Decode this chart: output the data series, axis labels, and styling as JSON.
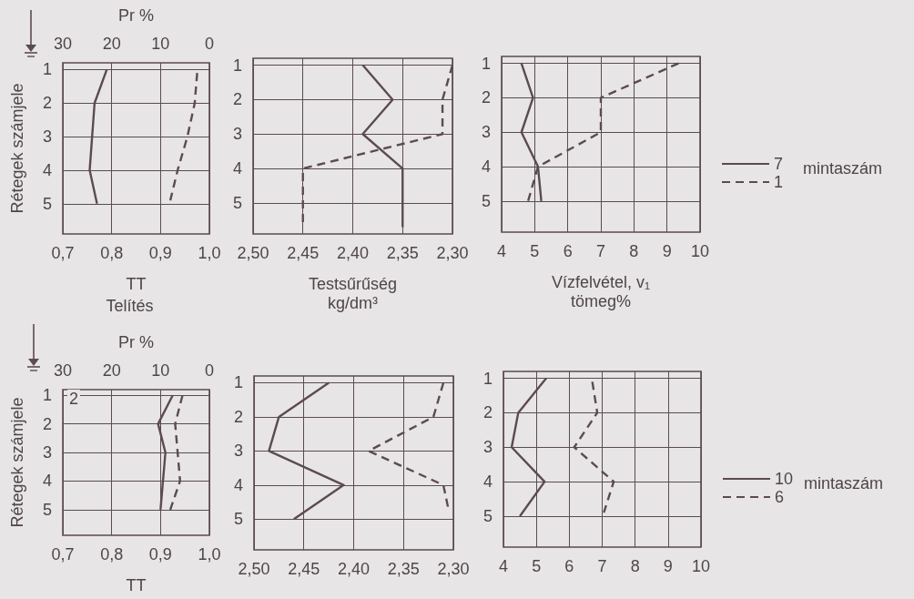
{
  "chart_data": [
    {
      "type": "line",
      "xlabel": "TT",
      "ylabel": "Rétegek számjele",
      "x2label": "Pr %",
      "annotations": [
        "Telítés"
      ],
      "xlim": [
        0.7,
        1.0
      ],
      "xticks": [
        {
          "value": 0.7,
          "label": "0,7"
        },
        {
          "value": 0.8,
          "label": "0,8"
        },
        {
          "value": 0.9,
          "label": "0,9"
        },
        {
          "value": 1.0,
          "label": "1,0"
        }
      ],
      "x2lim": [
        30,
        0
      ],
      "x2ticks": [
        30,
        20,
        10,
        0
      ],
      "ylim": [
        5.9,
        0.8
      ],
      "yticks": [
        1,
        2,
        3,
        4,
        5
      ],
      "grid": true,
      "marker": "none",
      "series": [
        {
          "color": "#5b4b50",
          "line_style": "solid",
          "x": [
            0.79,
            0.765,
            0.76,
            0.755,
            0.77
          ],
          "values": [
            1,
            2,
            3,
            4,
            5
          ]
        },
        {
          "color": "#5b4b50",
          "line_style": "dashed",
          "x": [
            0.975,
            0.97,
            0.955,
            0.935,
            0.92
          ],
          "values": [
            1.1,
            2,
            3,
            4,
            4.9
          ]
        }
      ]
    },
    {
      "type": "line",
      "xlabel": "Testsűrűség\nkg/dm³",
      "xlim": [
        2.5,
        2.3
      ],
      "xticks": [
        {
          "value": 2.5,
          "label": "2,50"
        },
        {
          "value": 2.45,
          "label": "2,45"
        },
        {
          "value": 2.4,
          "label": "2,40"
        },
        {
          "value": 2.35,
          "label": "2,35"
        },
        {
          "value": 2.3,
          "label": "2,30"
        }
      ],
      "ylim": [
        5.9,
        0.8
      ],
      "yticks": [
        1,
        2,
        3,
        4,
        5
      ],
      "grid": true,
      "marker": "none",
      "series": [
        {
          "color": "#5b4b50",
          "line_style": "solid",
          "x": [
            2.39,
            2.36,
            2.39,
            2.35,
            2.35
          ],
          "values": [
            1,
            2,
            3,
            4,
            5.7
          ]
        },
        {
          "color": "#5b4b50",
          "line_style": "dashed",
          "x": [
            2.3,
            2.31,
            2.31,
            2.45,
            2.45
          ],
          "values": [
            1,
            2,
            3,
            4,
            5.7
          ]
        }
      ]
    },
    {
      "type": "line",
      "xlabel": "Vízfelvétel, v₁\ntömeg%",
      "legend_title": "mintaszám",
      "legend": "right",
      "xlim": [
        4,
        10
      ],
      "xticks": [
        4,
        5,
        6,
        7,
        8,
        9,
        10
      ],
      "ylim": [
        5.9,
        0.8
      ],
      "yticks": [
        1,
        2,
        3,
        4,
        5
      ],
      "grid": true,
      "marker": "none",
      "series": [
        {
          "name": "7",
          "color": "#5b4b50",
          "line_style": "solid",
          "x": [
            4.6,
            4.95,
            4.6,
            5.1,
            5.2
          ],
          "values": [
            1,
            2,
            3,
            4,
            5
          ]
        },
        {
          "name": "1",
          "color": "#5b4b50",
          "line_style": "dashed",
          "x": [
            9.35,
            7.0,
            7.0,
            5.1,
            4.8
          ],
          "values": [
            1,
            2,
            3,
            4,
            5
          ]
        }
      ]
    },
    {
      "type": "line",
      "xlabel": "TT",
      "ylabel": "Rétegek számjele",
      "x2label": "Pr %",
      "annotations": [
        "2"
      ],
      "xlim": [
        0.7,
        1.0
      ],
      "xticks": [
        {
          "value": 0.7,
          "label": "0,7"
        },
        {
          "value": 0.8,
          "label": "0,8"
        },
        {
          "value": 0.9,
          "label": "0,9"
        },
        {
          "value": 1.0,
          "label": "1,0"
        }
      ],
      "x2lim": [
        30,
        0
      ],
      "x2ticks": [
        30,
        20,
        10,
        0
      ],
      "ylim": [
        5.9,
        0.8
      ],
      "yticks": [
        1,
        2,
        3,
        4,
        5
      ],
      "grid": true,
      "marker": "none",
      "series": [
        {
          "color": "#5b4b50",
          "line_style": "solid",
          "x": [
            0.925,
            0.895,
            0.91,
            0.905,
            0.9
          ],
          "values": [
            1,
            2,
            3,
            4,
            5
          ]
        },
        {
          "color": "#5b4b50",
          "line_style": "dashed",
          "x": [
            0.945,
            0.93,
            0.935,
            0.94,
            0.92
          ],
          "values": [
            1,
            2,
            3,
            4,
            5
          ]
        }
      ]
    },
    {
      "type": "line",
      "xlim": [
        2.5,
        2.3
      ],
      "xticks": [
        {
          "value": 2.5,
          "label": "2,50"
        },
        {
          "value": 2.45,
          "label": "2,45"
        },
        {
          "value": 2.4,
          "label": "2,40"
        },
        {
          "value": 2.35,
          "label": "2,35"
        },
        {
          "value": 2.3,
          "label": "2,30"
        }
      ],
      "ylim": [
        5.9,
        0.8
      ],
      "yticks": [
        1,
        2,
        3,
        4,
        5
      ],
      "grid": true,
      "marker": "none",
      "series": [
        {
          "color": "#5b4b50",
          "line_style": "solid",
          "x": [
            2.425,
            2.475,
            2.485,
            2.41,
            2.46
          ],
          "values": [
            1,
            2,
            3,
            4,
            5
          ]
        },
        {
          "color": "#5b4b50",
          "line_style": "dashed",
          "x": [
            2.31,
            2.32,
            2.385,
            2.31,
            2.305
          ],
          "values": [
            1,
            2,
            3,
            4,
            4.7
          ]
        }
      ]
    },
    {
      "type": "line",
      "legend_title": "mintaszám",
      "legend": "right",
      "xlim": [
        4,
        10
      ],
      "xticks": [
        4,
        5,
        6,
        7,
        8,
        9,
        10
      ],
      "ylim": [
        5.9,
        0.8
      ],
      "yticks": [
        1,
        2,
        3,
        4,
        5
      ],
      "grid": true,
      "marker": "none",
      "series": [
        {
          "name": "10",
          "color": "#5b4b50",
          "line_style": "solid",
          "x": [
            5.3,
            4.45,
            4.25,
            5.25,
            4.5
          ],
          "values": [
            1,
            2,
            3,
            4,
            5
          ]
        },
        {
          "name": "6",
          "color": "#5b4b50",
          "line_style": "dashed",
          "x": [
            6.7,
            6.85,
            6.15,
            7.35,
            7.05
          ],
          "values": [
            1.1,
            2,
            3,
            4,
            4.9
          ]
        }
      ]
    }
  ]
}
